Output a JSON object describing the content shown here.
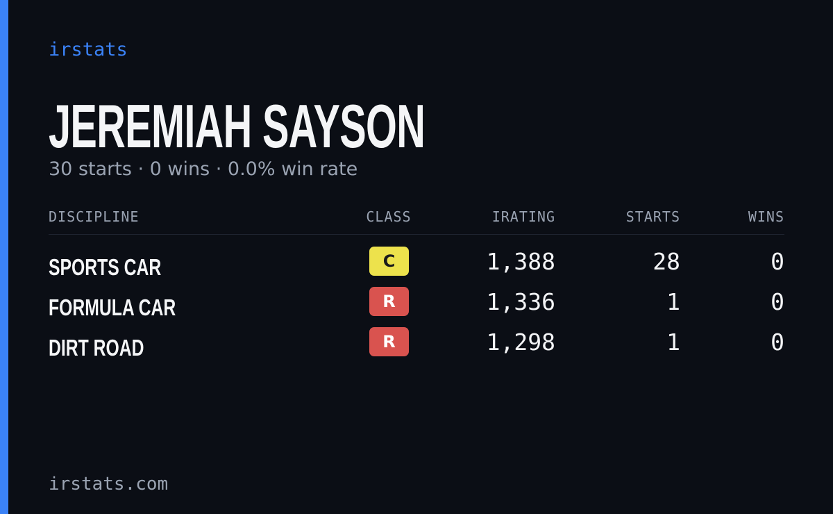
{
  "brand": "irstats",
  "driver": {
    "name": "JEREMIAH SAYSON",
    "summary": "30 starts · 0 wins · 0.0% win rate"
  },
  "table": {
    "headers": [
      "DISCIPLINE",
      "CLASS",
      "IRATING",
      "STARTS",
      "WINS"
    ],
    "rows": [
      [
        "SPORTS CAR",
        "C",
        "1,388",
        "28",
        "0"
      ],
      [
        "FORMULA CAR",
        "R",
        "1,336",
        "1",
        "0"
      ],
      [
        "DIRT ROAD",
        "R",
        "1,298",
        "1",
        "0"
      ]
    ],
    "badge_colors": [
      {
        "fill": "#ede24c",
        "text": "#1b1b1b"
      },
      {
        "fill": "#d9534f",
        "text": "#ffffff"
      },
      {
        "fill": "#d9534f",
        "text": "#ffffff"
      }
    ]
  },
  "footer": "irstats.com"
}
